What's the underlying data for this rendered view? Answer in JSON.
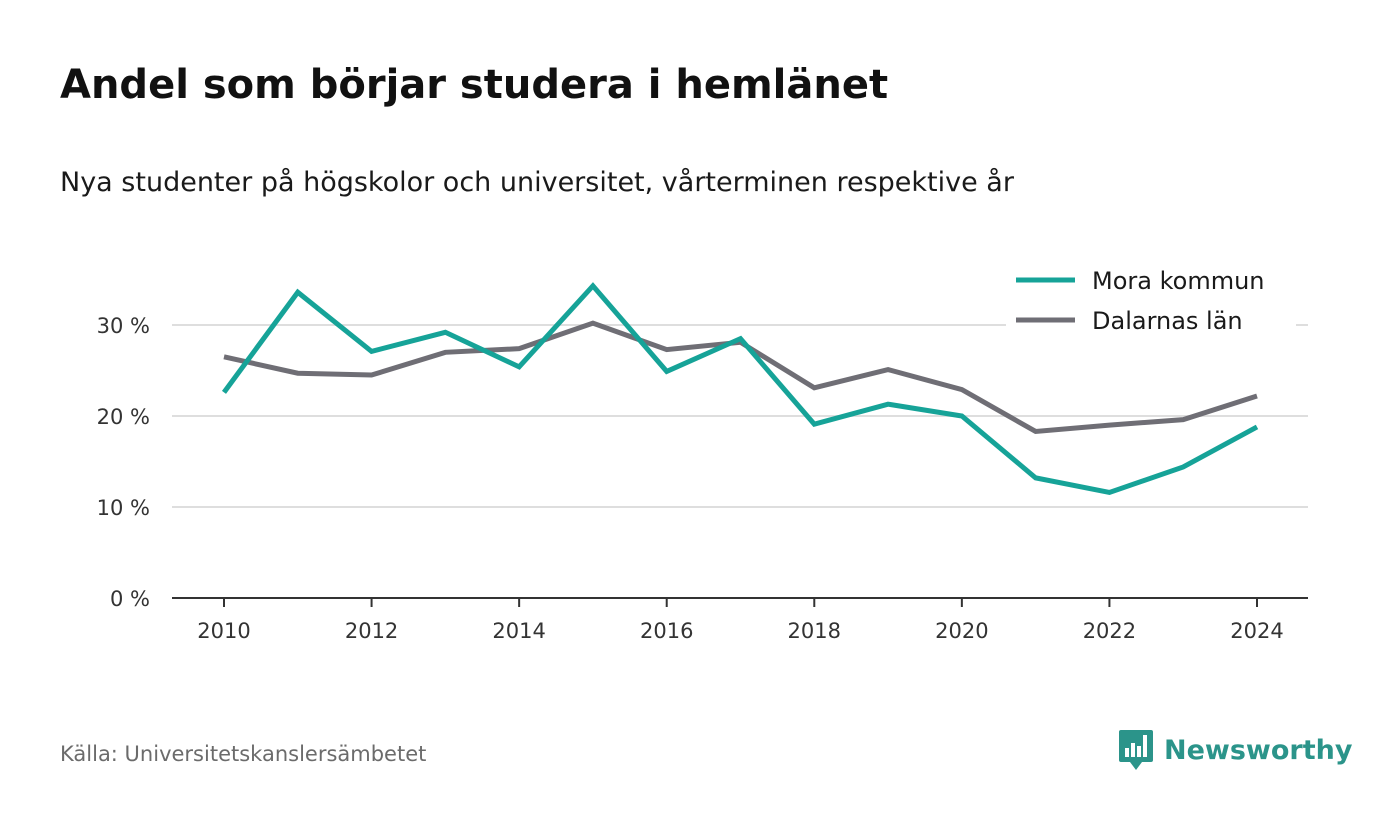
{
  "header": {
    "title": "Andel som börjar studera i hemlänet",
    "subtitle": "Nya studenter på högskolor och universitet, vårterminen respektive år"
  },
  "footer": {
    "source": "Källa: Universitetskanslersämbetet",
    "brand": "Newsworthy",
    "brand_color": "#2b948a",
    "brand_icon": "bar-chart-speech-bubble-icon"
  },
  "chart_data": {
    "type": "line",
    "title": "Andel som börjar studera i hemlänet",
    "subtitle": "Nya studenter på högskolor och universitet, vårterminen respektive år",
    "xlabel": "",
    "ylabel": "",
    "x": [
      2010,
      2011,
      2012,
      2013,
      2014,
      2015,
      2016,
      2017,
      2018,
      2019,
      2020,
      2021,
      2022,
      2023,
      2024
    ],
    "x_ticks": [
      2010,
      2012,
      2014,
      2016,
      2018,
      2020,
      2022,
      2024
    ],
    "y_ticks": [
      0,
      10,
      20,
      30
    ],
    "y_tick_labels": [
      "0 %",
      "10 %",
      "20 %",
      "30 %"
    ],
    "ylim": [
      0,
      35
    ],
    "grid": true,
    "legend_position": "top-right",
    "series": [
      {
        "name": "Mora kommun",
        "color": "#16a398",
        "values": [
          22.6,
          33.6,
          27.1,
          29.2,
          25.4,
          34.3,
          24.9,
          28.5,
          19.1,
          21.3,
          20.0,
          13.2,
          11.6,
          14.4,
          18.8
        ]
      },
      {
        "name": "Dalarnas län",
        "color": "#6f6e75",
        "values": [
          26.5,
          24.7,
          24.5,
          27.0,
          27.4,
          30.2,
          27.3,
          28.1,
          23.1,
          25.1,
          22.9,
          18.3,
          19.0,
          19.6,
          22.2
        ]
      }
    ]
  }
}
